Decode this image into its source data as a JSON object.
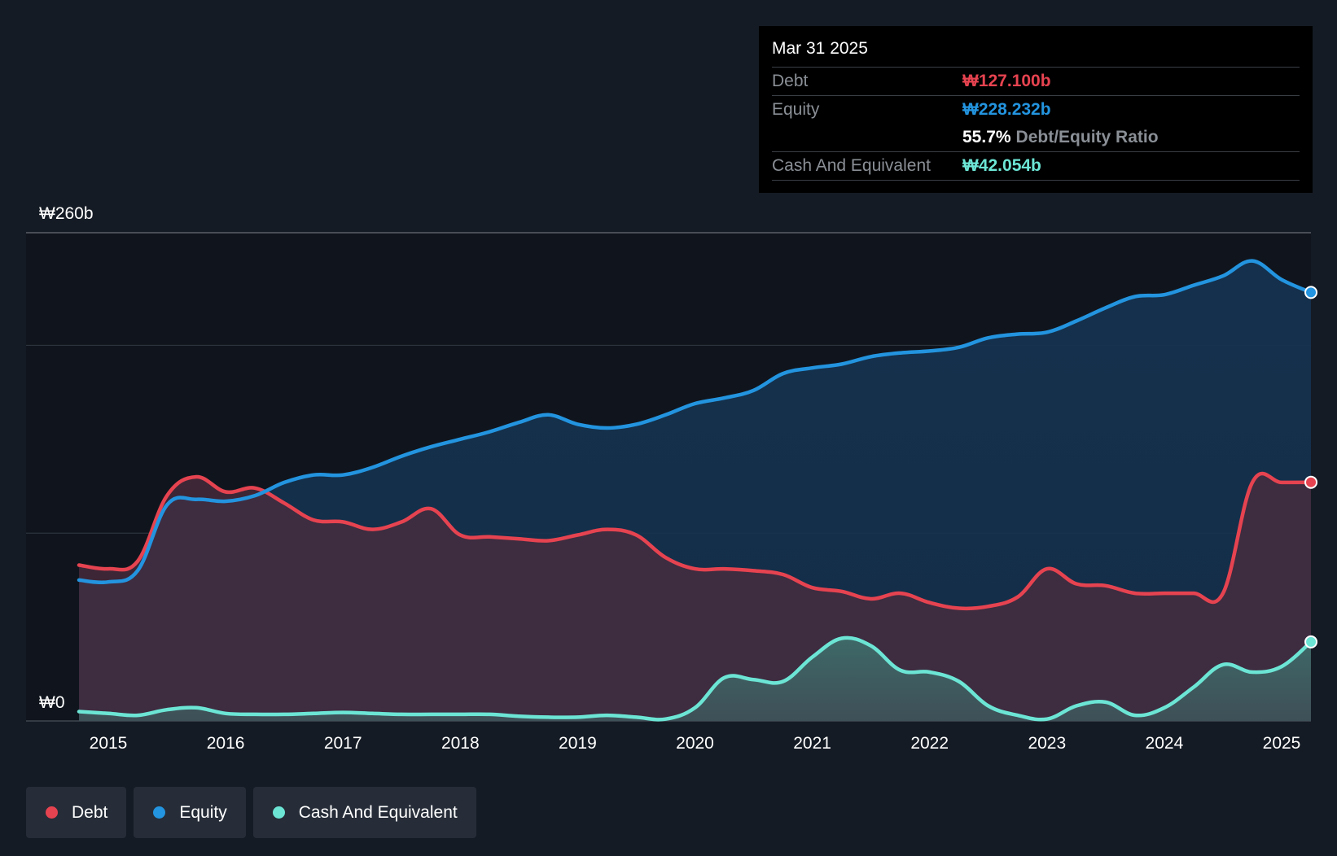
{
  "chart_data": {
    "type": "area",
    "x_ticks": [
      "2015",
      "2016",
      "2017",
      "2018",
      "2019",
      "2020",
      "2021",
      "2022",
      "2023",
      "2024",
      "2025"
    ],
    "y_axis": {
      "top_label": "₩260b",
      "bottom_label": "₩0",
      "ylim": [
        0,
        260
      ],
      "gridlines": [
        0,
        100,
        200,
        260
      ]
    },
    "colors": {
      "debt": "#e64350",
      "equity": "#2394df",
      "cash": "#6ce5d5"
    },
    "series": [
      {
        "name": "Equity",
        "x": [
          2014.75,
          2015.0,
          2015.25,
          2015.5,
          2015.75,
          2016.0,
          2016.25,
          2016.5,
          2016.75,
          2017.0,
          2017.25,
          2017.5,
          2017.75,
          2018.0,
          2018.25,
          2018.5,
          2018.75,
          2019.0,
          2019.25,
          2019.5,
          2019.75,
          2020.0,
          2020.25,
          2020.5,
          2020.75,
          2021.0,
          2021.25,
          2021.5,
          2021.75,
          2022.0,
          2022.25,
          2022.5,
          2022.75,
          2023.0,
          2023.25,
          2023.5,
          2023.75,
          2024.0,
          2024.25,
          2024.5,
          2024.75,
          2025.0,
          2025.25
        ],
        "values": [
          75,
          74,
          80,
          115,
          118,
          117,
          120,
          127,
          131,
          131,
          135,
          141,
          146,
          150,
          154,
          159,
          163,
          158,
          156,
          158,
          163,
          169,
          172,
          176,
          185,
          188,
          190,
          194,
          196,
          197,
          199,
          204,
          206,
          207,
          213,
          220,
          226,
          227,
          232,
          237,
          245,
          235,
          228.2
        ]
      },
      {
        "name": "Debt",
        "x": [
          2014.75,
          2015.0,
          2015.25,
          2015.5,
          2015.75,
          2016.0,
          2016.25,
          2016.5,
          2016.75,
          2017.0,
          2017.25,
          2017.5,
          2017.75,
          2018.0,
          2018.25,
          2018.5,
          2018.75,
          2019.0,
          2019.25,
          2019.5,
          2019.75,
          2020.0,
          2020.25,
          2020.5,
          2020.75,
          2021.0,
          2021.25,
          2021.5,
          2021.75,
          2022.0,
          2022.25,
          2022.5,
          2022.75,
          2023.0,
          2023.25,
          2023.5,
          2023.75,
          2024.0,
          2024.25,
          2024.5,
          2024.75,
          2025.0,
          2025.25
        ],
        "values": [
          83,
          81,
          85,
          120,
          130,
          122,
          124,
          116,
          107,
          106,
          102,
          106,
          113,
          99,
          98,
          97,
          96,
          99,
          102,
          99,
          87,
          81,
          81,
          80,
          78,
          71,
          69,
          65,
          68,
          63,
          60,
          61,
          66,
          81,
          73,
          72,
          68,
          68,
          68,
          68,
          127,
          127,
          127.1
        ]
      },
      {
        "name": "Cash And Equivalent",
        "x": [
          2014.75,
          2015.0,
          2015.25,
          2015.5,
          2015.75,
          2016.0,
          2016.25,
          2016.5,
          2016.75,
          2017.0,
          2017.25,
          2017.5,
          2017.75,
          2018.0,
          2018.25,
          2018.5,
          2018.75,
          2019.0,
          2019.25,
          2019.5,
          2019.75,
          2020.0,
          2020.25,
          2020.5,
          2020.75,
          2021.0,
          2021.25,
          2021.5,
          2021.75,
          2022.0,
          2022.25,
          2022.5,
          2022.75,
          2023.0,
          2023.25,
          2023.5,
          2023.75,
          2024.0,
          2024.25,
          2024.5,
          2024.75,
          2025.0,
          2025.25
        ],
        "values": [
          5,
          4,
          3,
          6,
          7,
          4,
          3.5,
          3.5,
          4,
          4.5,
          4,
          3.5,
          3.5,
          3.5,
          3.5,
          2.5,
          2,
          2,
          3,
          2,
          1,
          7,
          23,
          22,
          21,
          34,
          44,
          40,
          27,
          26,
          21,
          8,
          3,
          1,
          8,
          10,
          3,
          7,
          18,
          30,
          26,
          29,
          42.1
        ]
      }
    ]
  },
  "tooltip": {
    "date": "Mar 31 2025",
    "debt_label": "Debt",
    "debt_value": "₩127.100b",
    "equity_label": "Equity",
    "equity_value": "₩228.232b",
    "ratio_value": "55.7%",
    "ratio_label": "Debt/Equity Ratio",
    "cash_label": "Cash And Equivalent",
    "cash_value": "₩42.054b"
  },
  "legend": {
    "debt": "Debt",
    "equity": "Equity",
    "cash": "Cash And Equivalent"
  }
}
